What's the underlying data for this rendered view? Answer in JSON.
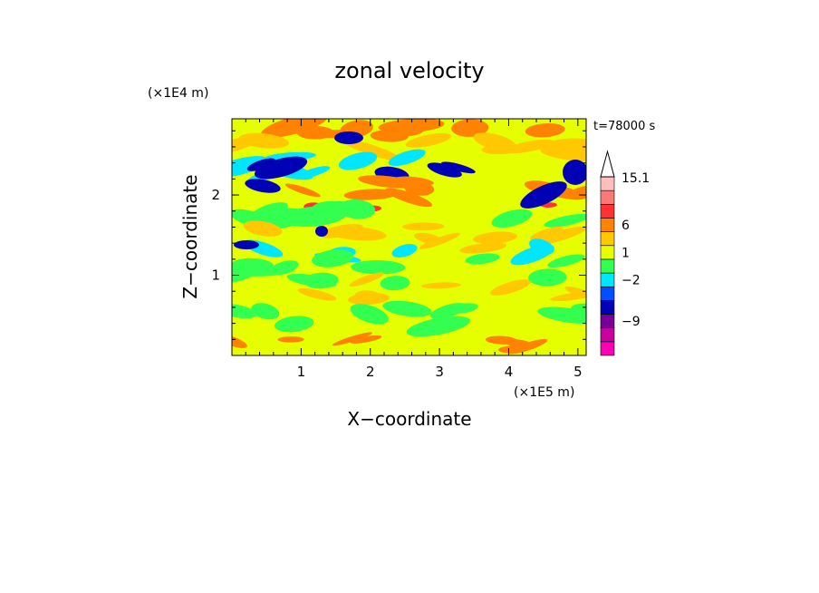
{
  "chart_data": {
    "type": "heatmap",
    "title": "zonal velocity",
    "time_label": "t=78000 s",
    "xlabel": "X−coordinate",
    "ylabel": "Z−coordinate",
    "x_unit": "(×1E5 m)",
    "y_unit": "(×1E4 m)",
    "xlim": [
      0,
      5.12
    ],
    "ylim": [
      0,
      2.95
    ],
    "x_ticks": [
      {
        "value": 1,
        "label": "1"
      },
      {
        "value": 2,
        "label": "2"
      },
      {
        "value": 3,
        "label": "3"
      },
      {
        "value": 4,
        "label": "4"
      },
      {
        "value": 5,
        "label": "5"
      }
    ],
    "y_ticks": [
      {
        "value": 1,
        "label": "1"
      },
      {
        "value": 2,
        "label": "2"
      }
    ],
    "colorbar": {
      "labels": [
        "15.1",
        "6",
        "1",
        "−2",
        "−9"
      ],
      "colors_bottom_to_top": [
        "#ff00b4",
        "#c800a0",
        "#780096",
        "#0000b4",
        "#0050ff",
        "#00e6ff",
        "#32ff50",
        "#e6ff00",
        "#ffc800",
        "#ff8200",
        "#ff3232",
        "#ff7878",
        "#ffbebe"
      ],
      "extend_top": true
    }
  }
}
